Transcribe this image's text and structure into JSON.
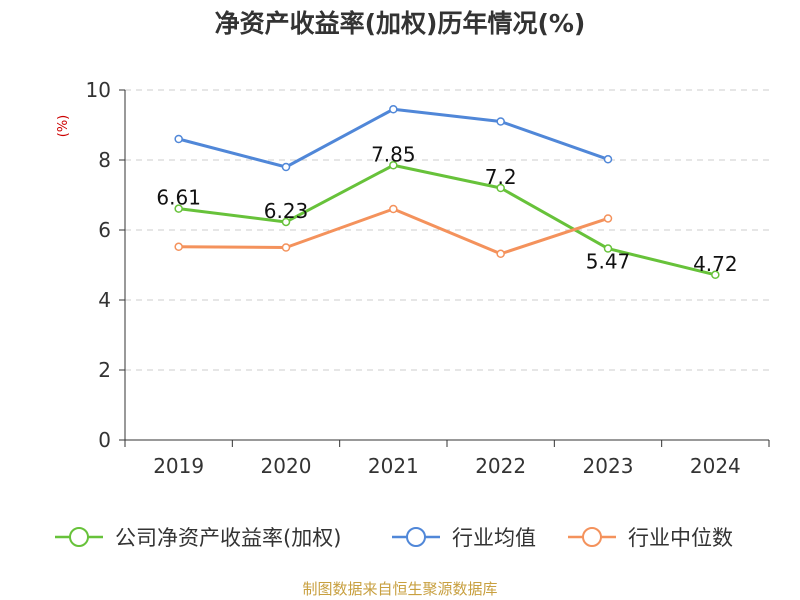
{
  "chart_data": {
    "type": "line",
    "title": "净资产收益率(加权)历年情况(%)",
    "ylabel": "(%)",
    "xlabel": "",
    "categories": [
      "2019",
      "2020",
      "2021",
      "2022",
      "2023",
      "2024"
    ],
    "ylim": [
      0,
      10
    ],
    "yticks": [
      0,
      2,
      4,
      6,
      8,
      10
    ],
    "grid": true,
    "legend_position": "bottom",
    "series": [
      {
        "name": "公司净资产收益率(加权)",
        "color": "#67c23a",
        "values": [
          6.61,
          6.23,
          7.85,
          7.2,
          5.47,
          4.72
        ],
        "labels": [
          "6.61",
          "6.23",
          "7.85",
          "7.2",
          "5.47",
          "4.72"
        ]
      },
      {
        "name": "行业均值",
        "color": "#5087d8",
        "values": [
          8.6,
          7.8,
          9.45,
          9.1,
          8.02,
          null
        ]
      },
      {
        "name": "行业中位数",
        "color": "#f4925c",
        "values": [
          5.52,
          5.5,
          6.6,
          5.32,
          6.33,
          null
        ]
      }
    ]
  },
  "colors": {
    "ylabel": "#cc0000",
    "source": "#c8a040"
  },
  "source": "制图数据来自恒生聚源数据库"
}
